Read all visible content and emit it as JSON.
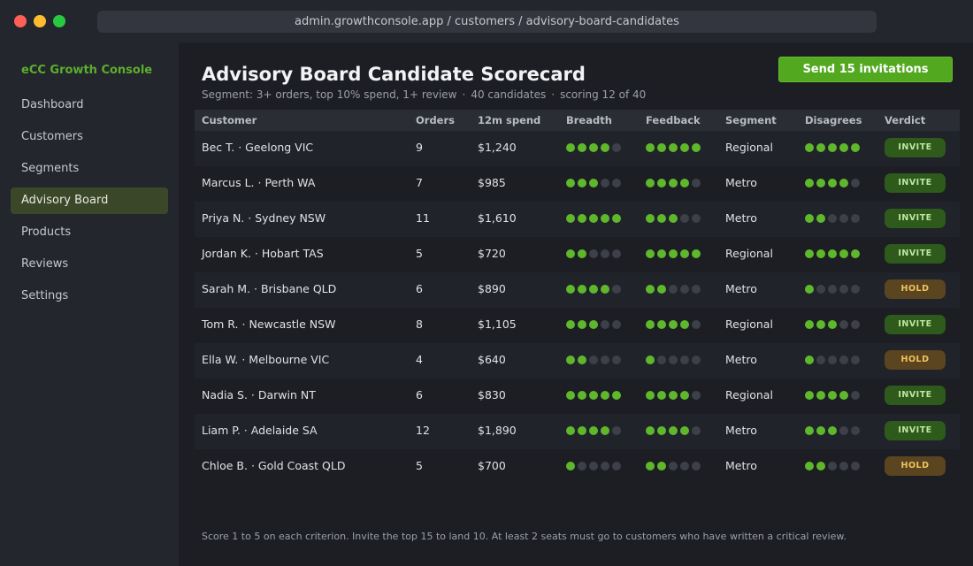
{
  "window": {
    "url": "admin.growthconsole.app / customers / advisory-board-candidates"
  },
  "sidebar": {
    "brand": "eCC Growth Console",
    "items": [
      {
        "label": "Dashboard",
        "active": false
      },
      {
        "label": "Customers",
        "active": false
      },
      {
        "label": "Segments",
        "active": false
      },
      {
        "label": "Advisory Board",
        "active": true
      },
      {
        "label": "Products",
        "active": false
      },
      {
        "label": "Reviews",
        "active": false
      },
      {
        "label": "Settings",
        "active": false
      }
    ]
  },
  "header": {
    "title": "Advisory Board Candidate Scorecard",
    "segment_text": "Segment: 3+ orders, top 10% spend, 1+ review",
    "candidates_text": "40 candidates",
    "scoring_text": "scoring 12 of 40",
    "separator": "·",
    "send_button": "Send 15 invitations"
  },
  "table": {
    "columns": [
      "Customer",
      "Orders",
      "12m spend",
      "Breadth",
      "Feedback",
      "Segment",
      "Disagrees",
      "Verdict"
    ],
    "rows": [
      {
        "customer": "Bec T. · Geelong VIC",
        "orders": "9",
        "spend": "$1,240",
        "breadth": 4,
        "feedback": 5,
        "segment": "Regional",
        "disagrees": 5,
        "verdict": "INVITE",
        "verdict_type": "invite"
      },
      {
        "customer": "Marcus L. · Perth WA",
        "orders": "7",
        "spend": "$985",
        "breadth": 3,
        "feedback": 4,
        "segment": "Metro",
        "disagrees": 4,
        "verdict": "INVITE",
        "verdict_type": "invite"
      },
      {
        "customer": "Priya N. · Sydney NSW",
        "orders": "11",
        "spend": "$1,610",
        "breadth": 5,
        "feedback": 3,
        "segment": "Metro",
        "disagrees": 2,
        "verdict": "INVITE",
        "verdict_type": "invite"
      },
      {
        "customer": "Jordan K. · Hobart TAS",
        "orders": "5",
        "spend": "$720",
        "breadth": 2,
        "feedback": 5,
        "segment": "Regional",
        "disagrees": 5,
        "verdict": "INVITE",
        "verdict_type": "invite"
      },
      {
        "customer": "Sarah M. · Brisbane QLD",
        "orders": "6",
        "spend": "$890",
        "breadth": 4,
        "feedback": 2,
        "segment": "Metro",
        "disagrees": 1,
        "verdict": "HOLD",
        "verdict_type": "hold"
      },
      {
        "customer": "Tom R. · Newcastle NSW",
        "orders": "8",
        "spend": "$1,105",
        "breadth": 3,
        "feedback": 4,
        "segment": "Regional",
        "disagrees": 3,
        "verdict": "INVITE",
        "verdict_type": "invite"
      },
      {
        "customer": "Ella W. · Melbourne VIC",
        "orders": "4",
        "spend": "$640",
        "breadth": 2,
        "feedback": 1,
        "segment": "Metro",
        "disagrees": 1,
        "verdict": "HOLD",
        "verdict_type": "hold"
      },
      {
        "customer": "Nadia S. · Darwin NT",
        "orders": "6",
        "spend": "$830",
        "breadth": 5,
        "feedback": 4,
        "segment": "Regional",
        "disagrees": 4,
        "verdict": "INVITE",
        "verdict_type": "invite"
      },
      {
        "customer": "Liam P. · Adelaide SA",
        "orders": "12",
        "spend": "$1,890",
        "breadth": 4,
        "feedback": 4,
        "segment": "Metro",
        "disagrees": 3,
        "verdict": "INVITE",
        "verdict_type": "invite"
      },
      {
        "customer": "Chloe B. · Gold Coast QLD",
        "orders": "5",
        "spend": "$700",
        "breadth": 1,
        "feedback": 2,
        "segment": "Metro",
        "disagrees": 2,
        "verdict": "HOLD",
        "verdict_type": "hold"
      }
    ],
    "max_score": 5
  },
  "footnote": "Score 1 to 5 on each criterion. Invite the top 15 to land 10. At least 2 seats must go to customers who have written a critical review.",
  "colors": {
    "accent": "#5fb82b",
    "invite": "#2e5a1c",
    "hold": "#5b4420"
  }
}
